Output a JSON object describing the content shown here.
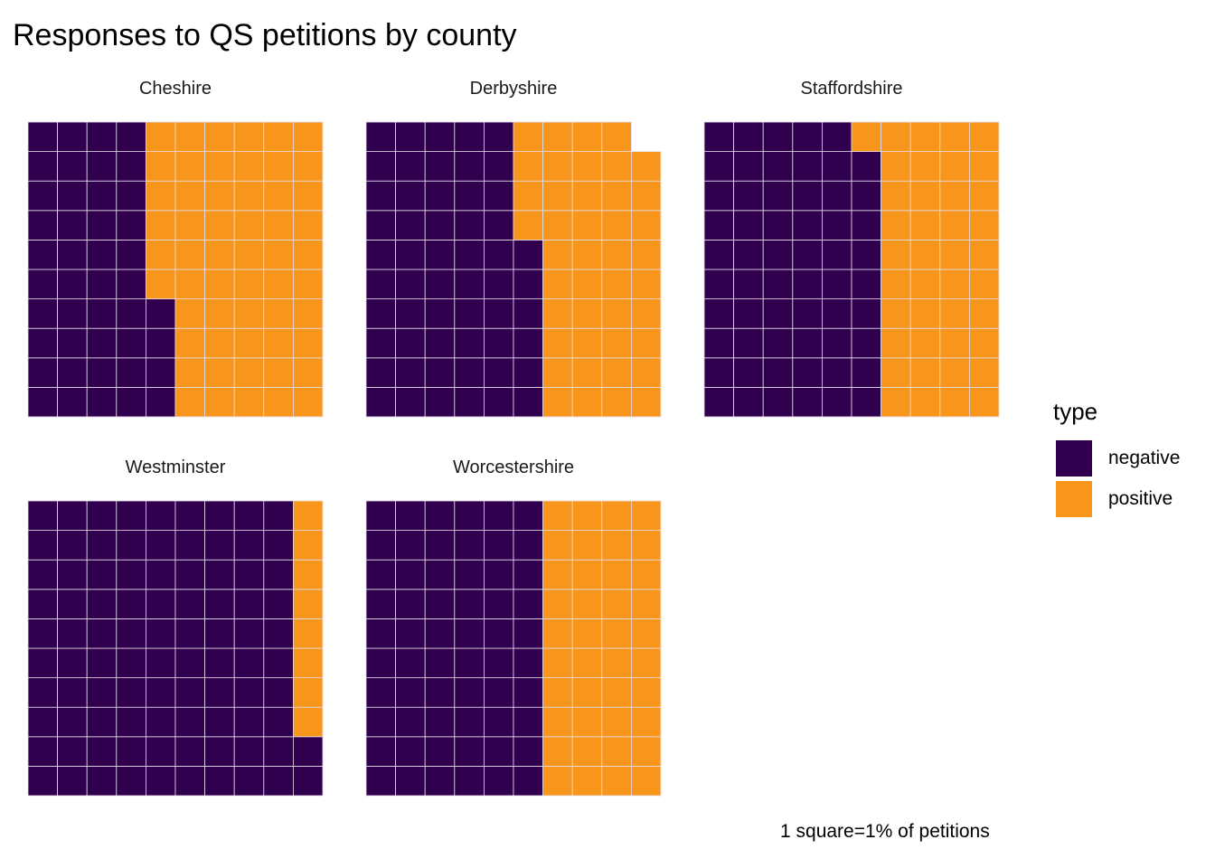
{
  "chart_data": {
    "type": "waffle",
    "title": "Responses to QS petitions by county",
    "caption": "1 square=1% of petitions",
    "grid": {
      "rows": 10,
      "cols": 10
    },
    "legend": {
      "title": "type",
      "position": "right",
      "entries": [
        "negative",
        "positive"
      ]
    },
    "colors": {
      "negative": "#30004F",
      "positive": "#F7961A",
      "gridline": "#E6DDEB"
    },
    "panels": [
      {
        "name": "Cheshire",
        "negative": 44,
        "positive": 56
      },
      {
        "name": "Derbyshire",
        "negative": 56,
        "positive": 43
      },
      {
        "name": "Staffordshire",
        "negative": 59,
        "positive": 41
      },
      {
        "name": "Westminster",
        "negative": 92,
        "positive": 8
      },
      {
        "name": "Worcestershire",
        "negative": 60,
        "positive": 40
      }
    ]
  }
}
